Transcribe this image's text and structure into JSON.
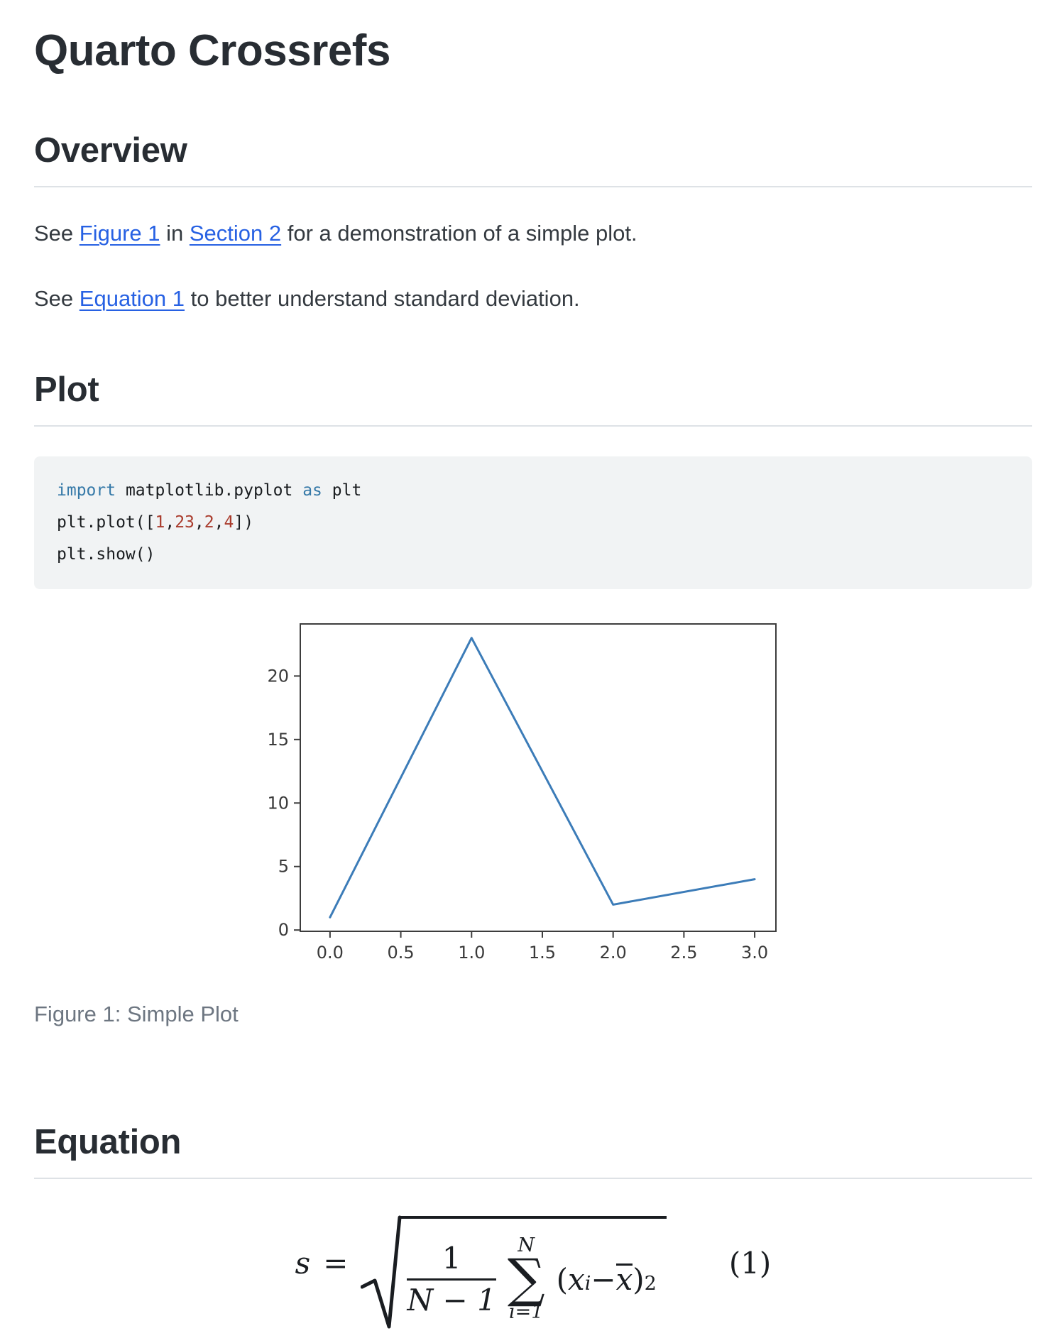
{
  "page": {
    "title": "Quarto Crossrefs"
  },
  "overview": {
    "heading": "Overview",
    "p1": {
      "pre": "See ",
      "link_figure": "Figure 1",
      "mid": " in ",
      "link_section": "Section 2",
      "post": " for a demonstration of a simple plot."
    },
    "p2": {
      "pre": "See ",
      "link_equation": "Equation 1",
      "post": " to better understand standard deviation."
    }
  },
  "plot_section": {
    "heading": "Plot",
    "code_lines": [
      [
        {
          "t": "kw",
          "v": "import"
        },
        {
          "t": "pl",
          "v": " matplotlib.pyplot "
        },
        {
          "t": "kw",
          "v": "as"
        },
        {
          "t": "pl",
          "v": " plt"
        }
      ],
      [
        {
          "t": "pl",
          "v": "plt.plot(["
        },
        {
          "t": "num",
          "v": "1"
        },
        {
          "t": "pl",
          "v": ","
        },
        {
          "t": "num",
          "v": "23"
        },
        {
          "t": "pl",
          "v": ","
        },
        {
          "t": "num",
          "v": "2"
        },
        {
          "t": "pl",
          "v": ","
        },
        {
          "t": "num",
          "v": "4"
        },
        {
          "t": "pl",
          "v": "])"
        }
      ],
      [
        {
          "t": "pl",
          "v": "plt.show()"
        }
      ]
    ],
    "figure_caption": "Figure 1: Simple Plot"
  },
  "equation_section": {
    "heading": "Equation",
    "math": {
      "lhs": "s",
      "equals": "=",
      "frac_num": "1",
      "frac_den": "N − 1",
      "sum_sup": "N",
      "sum_op": "∑",
      "sum_sub": "i=1",
      "open_paren": "(",
      "var_x": "x",
      "sub_i": "i",
      "minus": " − ",
      "xbar": "x",
      "close_paren": ")",
      "sup_2": "2",
      "tag": "(1)"
    }
  },
  "colors": {
    "link": "#2761e3",
    "keyword": "#3679a8",
    "number": "#a93b2c",
    "code_background": "#f1f3f4",
    "caption": "#6d7681",
    "heading_rule": "#dee2e6",
    "plot_line": "#3c7cb8"
  },
  "chart_data": {
    "type": "line",
    "x": [
      0,
      1,
      2,
      3
    ],
    "values": [
      1,
      23,
      2,
      4
    ],
    "title": "",
    "xlabel": "",
    "ylabel": "",
    "x_tick_vals": [
      0,
      0.5,
      1,
      1.5,
      2,
      2.5,
      3
    ],
    "x_tick_labels": [
      "0.0",
      "0.5",
      "1.0",
      "1.5",
      "2.0",
      "2.5",
      "3.0"
    ],
    "y_tick_vals": [
      0,
      5,
      10,
      15,
      20
    ],
    "y_tick_labels": [
      "0",
      "5",
      "10",
      "15",
      "20"
    ],
    "xlim": [
      -0.21,
      3.15
    ],
    "ylim": [
      -0.1,
      24.1
    ],
    "grid": false,
    "legend": false,
    "line_color": "#3c7cb8"
  }
}
